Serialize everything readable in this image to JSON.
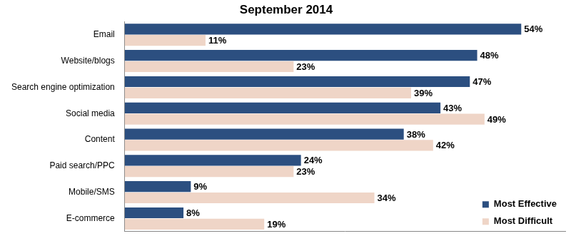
{
  "chart_data": {
    "type": "bar",
    "title": "September 2014",
    "orientation": "horizontal",
    "categories": [
      "Email",
      "Website/blogs",
      "Search engine optimization",
      "Social media",
      "Content",
      "Paid search/PPC",
      "Mobile/SMS",
      "E-commerce"
    ],
    "series": [
      {
        "name": "Most Effective",
        "color": "#2c4f80",
        "values": [
          54,
          48,
          47,
          43,
          38,
          24,
          9,
          8
        ],
        "value_labels": [
          "54%",
          "48%",
          "47%",
          "43%",
          "38%",
          "24%",
          "9%",
          "8%"
        ]
      },
      {
        "name": "Most Difficult",
        "color": "#efd5c7",
        "values": [
          11,
          23,
          39,
          49,
          42,
          23,
          34,
          19
        ],
        "value_labels": [
          "11%",
          "23%",
          "39%",
          "49%",
          "42%",
          "23%",
          "34%",
          "19%"
        ]
      }
    ],
    "xlim": [
      0,
      60
    ],
    "grid": false,
    "legend": "lower right",
    "data_labels": true,
    "tick_labels": "y"
  }
}
